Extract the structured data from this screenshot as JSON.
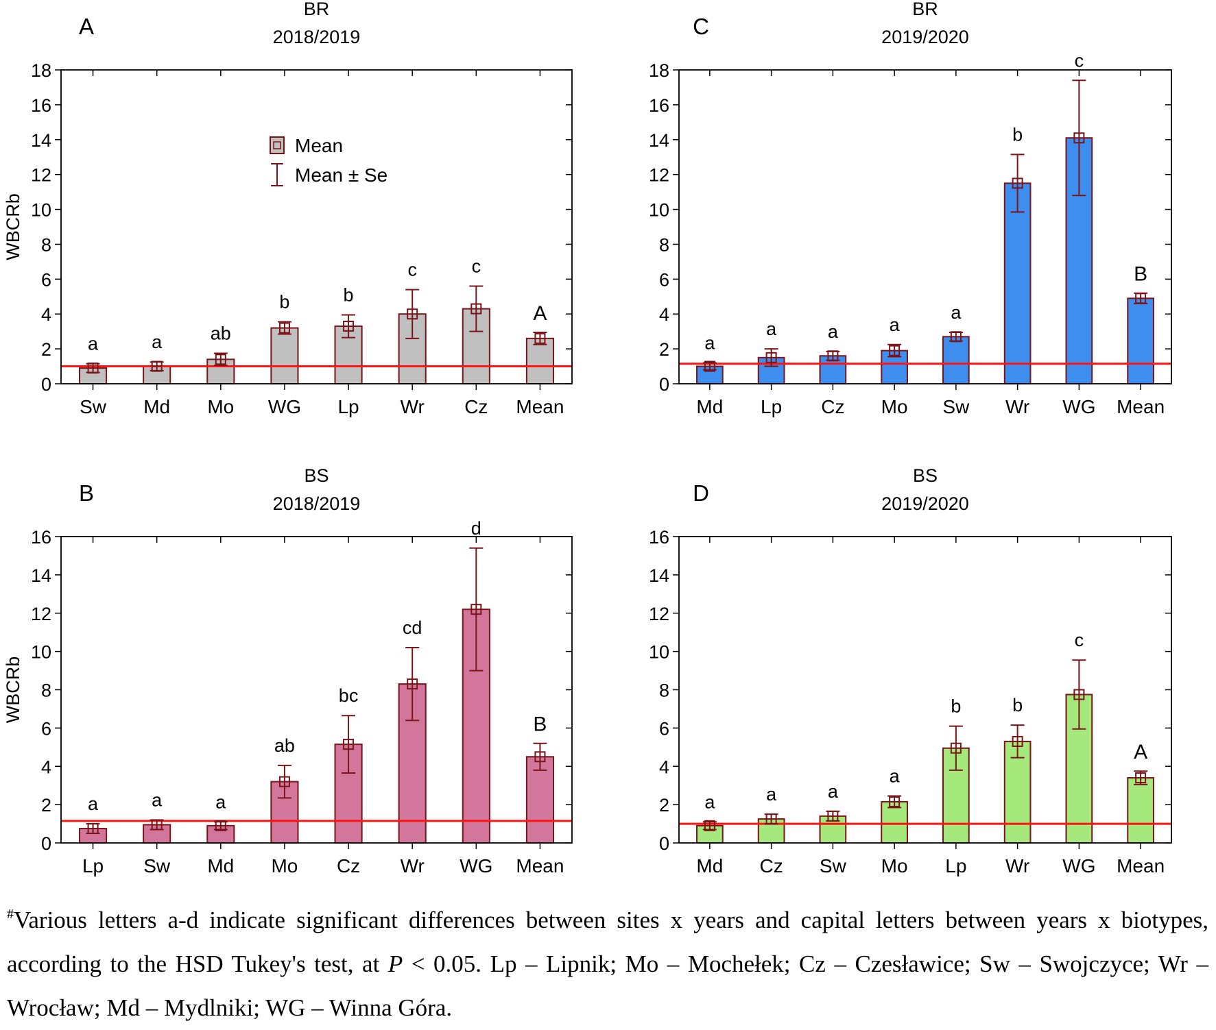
{
  "y_axis_label": "WBCRb",
  "legend": {
    "mean": "Mean",
    "mean_se": "Mean ± Se"
  },
  "caption": {
    "marker": "#",
    "part1": "Various letters a-d indicate significant differences between sites x years and capital letters between years x biotypes, according to the HSD Tukey's test, at ",
    "p_symbol": "P",
    "part2": " < 0.05. Lp – Lipnik; Mo – Mochełek; Cz – Czesławice; Sw – Swojczyce; Wr – Wrocław; Md – Mydlniki; WG – Winna Góra."
  },
  "colors": {
    "border": "#7a1419",
    "reference_line": "#ff1414",
    "axis": "#000000"
  },
  "chart_data": [
    {
      "type": "bar",
      "panel_letter": "A",
      "title": "BR",
      "subtitle": "2018/2019",
      "ylabel": "WBCRb",
      "ylim": [
        0,
        18
      ],
      "yticks": [
        0,
        2,
        4,
        6,
        8,
        10,
        12,
        14,
        16,
        18
      ],
      "bar_color": "#c0c0c0",
      "categories": [
        "Sw",
        "Md",
        "Mo",
        "WG",
        "Lp",
        "Wr",
        "Cz",
        "Mean"
      ],
      "values": [
        0.9,
        1.0,
        1.4,
        3.2,
        3.3,
        4.0,
        4.3,
        2.6
      ],
      "se": [
        0.25,
        0.25,
        0.35,
        0.35,
        0.65,
        1.4,
        1.3,
        0.35
      ],
      "letters": [
        "a",
        "a",
        "ab",
        "b",
        "b",
        "c",
        "c",
        "A"
      ],
      "reference_line": 1.0,
      "legend": true
    },
    {
      "type": "bar",
      "panel_letter": "C",
      "title": "BR",
      "subtitle": "2019/2020",
      "ylabel": "",
      "ylim": [
        0,
        18
      ],
      "yticks": [
        0,
        2,
        4,
        6,
        8,
        10,
        12,
        14,
        16,
        18
      ],
      "bar_color": "#3d8eef",
      "categories": [
        "Md",
        "Lp",
        "Cz",
        "Mo",
        "Sw",
        "Wr",
        "WG",
        "Mean"
      ],
      "values": [
        1.0,
        1.5,
        1.6,
        1.9,
        2.7,
        11.5,
        14.1,
        4.9
      ],
      "se": [
        0.2,
        0.5,
        0.25,
        0.35,
        0.25,
        1.65,
        3.3,
        0.3
      ],
      "letters": [
        "a",
        "a",
        "a",
        "a",
        "a",
        "b",
        "c",
        "B"
      ],
      "reference_line": 1.15,
      "legend": false
    },
    {
      "type": "bar",
      "panel_letter": "B",
      "title": "BS",
      "subtitle": "2018/2019",
      "ylabel": "WBCRb",
      "ylim": [
        0,
        16
      ],
      "yticks": [
        0,
        2,
        4,
        6,
        8,
        10,
        12,
        14,
        16
      ],
      "bar_color": "#d3769c",
      "categories": [
        "Lp",
        "Sw",
        "Md",
        "Mo",
        "Cz",
        "Wr",
        "WG",
        "Mean"
      ],
      "values": [
        0.75,
        0.95,
        0.9,
        3.2,
        5.15,
        8.3,
        12.2,
        4.5
      ],
      "se": [
        0.25,
        0.25,
        0.2,
        0.85,
        1.5,
        1.9,
        3.2,
        0.7
      ],
      "letters": [
        "a",
        "a",
        "a",
        "ab",
        "bc",
        "cd",
        "d",
        "B"
      ],
      "reference_line": 1.15,
      "legend": false
    },
    {
      "type": "bar",
      "panel_letter": "D",
      "title": "BS",
      "subtitle": "2019/2020",
      "ylabel": "",
      "ylim": [
        0,
        16
      ],
      "yticks": [
        0,
        2,
        4,
        6,
        8,
        10,
        12,
        14,
        16
      ],
      "bar_color": "#a5e97c",
      "categories": [
        "Md",
        "Cz",
        "Sw",
        "Mo",
        "Lp",
        "Wr",
        "WG",
        "Mean"
      ],
      "values": [
        0.9,
        1.25,
        1.4,
        2.15,
        4.95,
        5.3,
        7.75,
        3.4
      ],
      "se": [
        0.2,
        0.25,
        0.25,
        0.3,
        1.15,
        0.85,
        1.8,
        0.35
      ],
      "letters": [
        "a",
        "a",
        "a",
        "a",
        "b",
        "b",
        "c",
        "A"
      ],
      "reference_line": 1.0,
      "legend": false
    }
  ]
}
